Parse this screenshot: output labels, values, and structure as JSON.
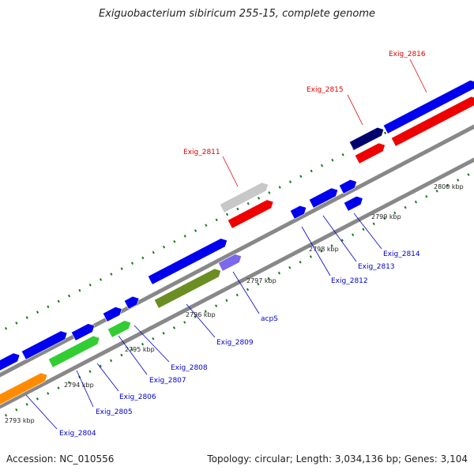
{
  "title": "Exiguobacterium sibiricum 255-15, complete genome",
  "footer": {
    "accession": "Accession: NC_010556",
    "summary": "Topology: circular; Length: 3,034,136 bp; Genes: 3,104"
  },
  "scale_labels": [
    "2793 kbp",
    "2794 kbp",
    "2795 kbp",
    "2796 kbp",
    "2797 kbp",
    "2798 kbp",
    "2799 kbp",
    "2800 kbp"
  ],
  "colors": {
    "blue": "#0000ee",
    "red": "#ee0000",
    "navy": "#00006e",
    "orange": "#ff8c00",
    "green": "#32cd32",
    "olive": "#6b8e23",
    "lavender": "#7b68ee",
    "grey": "#c8c8c8",
    "backbone": "#888888",
    "tick": "#1a7a1a",
    "red_label": "#dd0000",
    "blue_label": "#0000cc"
  },
  "gene_labels": {
    "exig_2804": "Exig_2804",
    "exig_2805": "Exig_2805",
    "exig_2806": "Exig_2806",
    "exig_2807": "Exig_2807",
    "exig_2808": "Exig_2808",
    "exig_2809": "Exig_2809",
    "acps": "acpS",
    "exig_2811": "Exig_2811",
    "exig_2812": "Exig_2812",
    "exig_2813": "Exig_2813",
    "exig_2814": "Exig_2814",
    "exig_2815": "Exig_2815",
    "exig_2816": "Exig_2816"
  }
}
